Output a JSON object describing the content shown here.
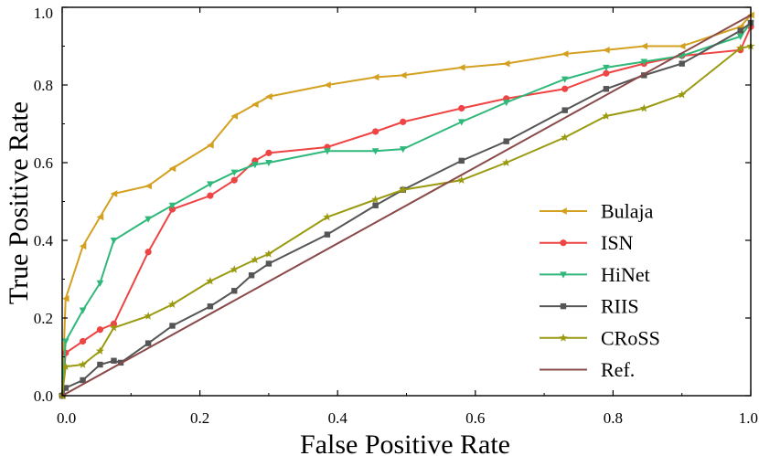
{
  "chart_data": {
    "type": "line",
    "title": "",
    "xlabel": "False Positive Rate",
    "ylabel": "True Positive Rate",
    "xlim": [
      0.0,
      1.0
    ],
    "ylim": [
      0.0,
      1.0
    ],
    "xticks": [
      "0.0",
      "0.2",
      "0.4",
      "0.6",
      "0.8",
      "1.0"
    ],
    "yticks": [
      "0.0",
      "0.2",
      "0.4",
      "0.6",
      "0.8",
      "1.0"
    ],
    "grid": false,
    "legend_position": "right",
    "series": [
      {
        "name": "Bulaja",
        "color": "#d4a020",
        "marker": "triangle-left",
        "x": [
          0.0,
          0.005,
          0.03,
          0.055,
          0.075,
          0.125,
          0.16,
          0.215,
          0.25,
          0.28,
          0.3,
          0.385,
          0.455,
          0.495,
          0.58,
          0.645,
          0.73,
          0.79,
          0.845,
          0.9,
          0.985,
          1.0
        ],
        "y": [
          0.0,
          0.25,
          0.385,
          0.46,
          0.52,
          0.54,
          0.585,
          0.645,
          0.72,
          0.75,
          0.77,
          0.8,
          0.82,
          0.825,
          0.845,
          0.855,
          0.88,
          0.89,
          0.9,
          0.9,
          0.95,
          0.98
        ]
      },
      {
        "name": "ISN",
        "color": "#ee4444",
        "marker": "circle",
        "x": [
          0.0,
          0.005,
          0.03,
          0.055,
          0.075,
          0.125,
          0.16,
          0.215,
          0.25,
          0.28,
          0.3,
          0.385,
          0.455,
          0.495,
          0.58,
          0.645,
          0.73,
          0.79,
          0.845,
          0.9,
          0.985,
          1.0
        ],
        "y": [
          0.0,
          0.11,
          0.14,
          0.17,
          0.185,
          0.37,
          0.48,
          0.515,
          0.555,
          0.605,
          0.625,
          0.64,
          0.68,
          0.705,
          0.74,
          0.765,
          0.79,
          0.83,
          0.855,
          0.875,
          0.89,
          0.95
        ]
      },
      {
        "name": "HiNet",
        "color": "#2fb87a",
        "marker": "triangle-down",
        "x": [
          0.0,
          0.005,
          0.03,
          0.055,
          0.075,
          0.125,
          0.16,
          0.215,
          0.25,
          0.28,
          0.3,
          0.385,
          0.455,
          0.495,
          0.58,
          0.645,
          0.73,
          0.79,
          0.845,
          0.9,
          0.985,
          1.0
        ],
        "y": [
          0.0,
          0.14,
          0.22,
          0.29,
          0.4,
          0.455,
          0.49,
          0.545,
          0.575,
          0.595,
          0.6,
          0.63,
          0.63,
          0.635,
          0.705,
          0.755,
          0.815,
          0.845,
          0.86,
          0.875,
          0.925,
          0.96
        ]
      },
      {
        "name": "RIIS",
        "color": "#555555",
        "marker": "square",
        "x": [
          0.0,
          0.005,
          0.03,
          0.055,
          0.075,
          0.085,
          0.125,
          0.16,
          0.215,
          0.25,
          0.275,
          0.3,
          0.385,
          0.455,
          0.495,
          0.58,
          0.645,
          0.73,
          0.79,
          0.845,
          0.9,
          0.985,
          1.0
        ],
        "y": [
          0.0,
          0.02,
          0.04,
          0.08,
          0.09,
          0.085,
          0.135,
          0.18,
          0.23,
          0.27,
          0.31,
          0.34,
          0.415,
          0.49,
          0.53,
          0.605,
          0.655,
          0.735,
          0.79,
          0.825,
          0.855,
          0.94,
          0.96
        ]
      },
      {
        "name": "CRoSS",
        "color": "#9a9a10",
        "marker": "star",
        "x": [
          0.0,
          0.005,
          0.03,
          0.055,
          0.075,
          0.125,
          0.16,
          0.215,
          0.25,
          0.28,
          0.3,
          0.385,
          0.455,
          0.495,
          0.58,
          0.645,
          0.73,
          0.79,
          0.845,
          0.9,
          0.985,
          1.0
        ],
        "y": [
          0.0,
          0.075,
          0.08,
          0.115,
          0.175,
          0.205,
          0.235,
          0.295,
          0.325,
          0.35,
          0.365,
          0.46,
          0.505,
          0.53,
          0.555,
          0.6,
          0.665,
          0.72,
          0.74,
          0.775,
          0.895,
          0.9
        ]
      },
      {
        "name": "Ref.",
        "color": "#8b4a4a",
        "marker": "none",
        "x": [
          0.0,
          1.0
        ],
        "y": [
          0.0,
          0.98
        ]
      }
    ]
  }
}
